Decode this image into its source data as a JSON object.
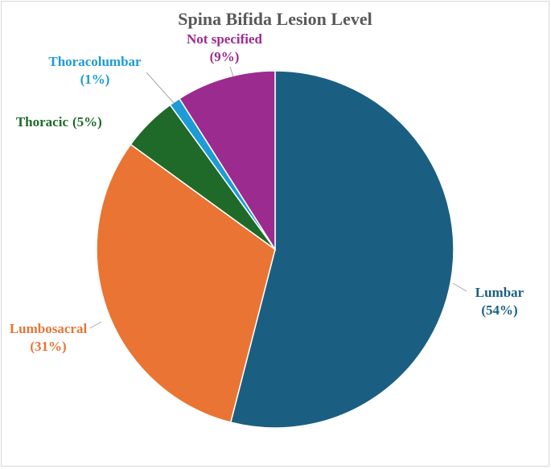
{
  "chart_data": {
    "type": "pie",
    "title": "Spina Bifida Lesion Level",
    "categories": [
      "Lumbar",
      "Lumbosacral",
      "Thoracic",
      "Thoracolumbar",
      "Not specified"
    ],
    "values": [
      54,
      31,
      5,
      1,
      9
    ],
    "value_labels": [
      "(54%)",
      "(31%)",
      "(5%)",
      "(1%)",
      "(9%)"
    ],
    "colors": [
      "#1a5f82",
      "#e97433",
      "#1f6a29",
      "#1d9bd7",
      "#9c2b90"
    ]
  }
}
